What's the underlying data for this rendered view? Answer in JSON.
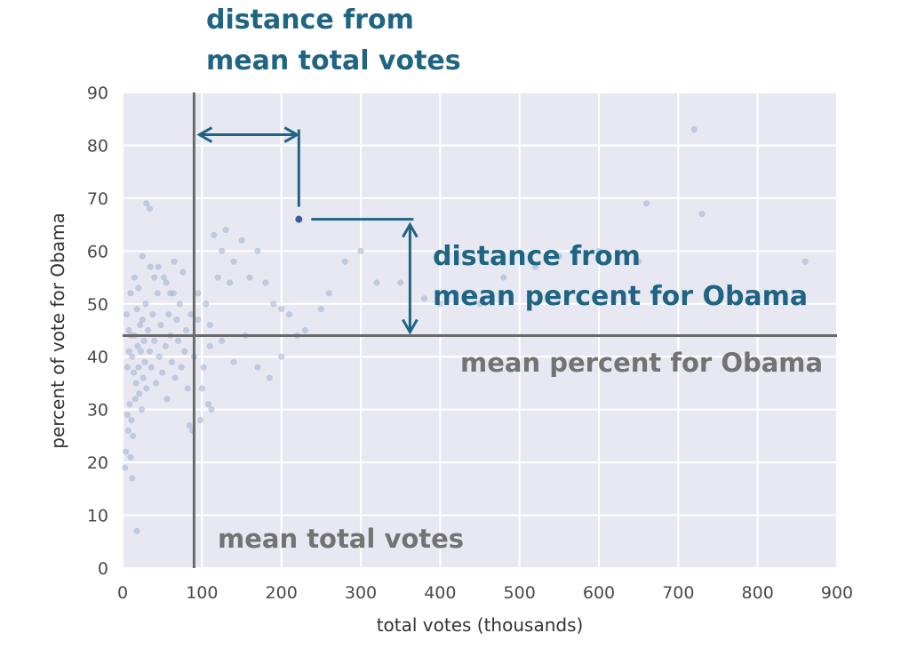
{
  "chart_data": {
    "type": "scatter",
    "xlabel": "total votes (thousands)",
    "ylabel": "percent of vote for Obama",
    "xlim": [
      0,
      900
    ],
    "ylim": [
      0,
      90
    ],
    "xticks": [
      "0",
      "100",
      "200",
      "300",
      "400",
      "500",
      "600",
      "700",
      "800",
      "900"
    ],
    "yticks": [
      "0",
      "10",
      "20",
      "30",
      "40",
      "50",
      "60",
      "70",
      "80",
      "90"
    ],
    "grid": true,
    "mean_total_votes": 90,
    "mean_percent_obama": 44,
    "highlight_point": {
      "x": 222,
      "y": 66
    },
    "points": [
      [
        5,
        48
      ],
      [
        8,
        45
      ],
      [
        10,
        52
      ],
      [
        12,
        40
      ],
      [
        14,
        37
      ],
      [
        15,
        44
      ],
      [
        17,
        35
      ],
      [
        18,
        49
      ],
      [
        19,
        42
      ],
      [
        20,
        38
      ],
      [
        21,
        33
      ],
      [
        22,
        46
      ],
      [
        23,
        41
      ],
      [
        24,
        30
      ],
      [
        25,
        47
      ],
      [
        26,
        36
      ],
      [
        27,
        43
      ],
      [
        28,
        39
      ],
      [
        29,
        50
      ],
      [
        30,
        34
      ],
      [
        6,
        29
      ],
      [
        7,
        26
      ],
      [
        9,
        31
      ],
      [
        11,
        28
      ],
      [
        13,
        25
      ],
      [
        16,
        32
      ],
      [
        4,
        22
      ],
      [
        3,
        19
      ],
      [
        10,
        21
      ],
      [
        12,
        17
      ],
      [
        32,
        45
      ],
      [
        34,
        41
      ],
      [
        36,
        38
      ],
      [
        38,
        48
      ],
      [
        40,
        43
      ],
      [
        42,
        35
      ],
      [
        44,
        52
      ],
      [
        46,
        40
      ],
      [
        48,
        46
      ],
      [
        50,
        37
      ],
      [
        52,
        55
      ],
      [
        54,
        42
      ],
      [
        56,
        32
      ],
      [
        58,
        48
      ],
      [
        60,
        44
      ],
      [
        62,
        39
      ],
      [
        64,
        52
      ],
      [
        66,
        36
      ],
      [
        68,
        47
      ],
      [
        70,
        43
      ],
      [
        72,
        50
      ],
      [
        74,
        38
      ],
      [
        76,
        56
      ],
      [
        78,
        41
      ],
      [
        80,
        45
      ],
      [
        82,
        34
      ],
      [
        84,
        27
      ],
      [
        86,
        48
      ],
      [
        88,
        26
      ],
      [
        90,
        40
      ],
      [
        35,
        57
      ],
      [
        45,
        57
      ],
      [
        55,
        54
      ],
      [
        65,
        58
      ],
      [
        30,
        69
      ],
      [
        34,
        68
      ],
      [
        18,
        7
      ],
      [
        95,
        52
      ],
      [
        98,
        28
      ],
      [
        100,
        34
      ],
      [
        105,
        50
      ],
      [
        110,
        42
      ],
      [
        115,
        63
      ],
      [
        120,
        55
      ],
      [
        125,
        60
      ],
      [
        130,
        64
      ],
      [
        135,
        54
      ],
      [
        140,
        58
      ],
      [
        150,
        62
      ],
      [
        160,
        55
      ],
      [
        170,
        60
      ],
      [
        180,
        54
      ],
      [
        190,
        50
      ],
      [
        200,
        49
      ],
      [
        210,
        48
      ],
      [
        220,
        44
      ],
      [
        230,
        45
      ],
      [
        250,
        49
      ],
      [
        260,
        52
      ],
      [
        280,
        58
      ],
      [
        300,
        60
      ],
      [
        320,
        54
      ],
      [
        350,
        54
      ],
      [
        380,
        51
      ],
      [
        400,
        50
      ],
      [
        420,
        52
      ],
      [
        450,
        50
      ],
      [
        480,
        55
      ],
      [
        520,
        57
      ],
      [
        550,
        59
      ],
      [
        600,
        60
      ],
      [
        650,
        58
      ],
      [
        660,
        69
      ],
      [
        720,
        83
      ],
      [
        730,
        67
      ],
      [
        860,
        58
      ],
      [
        110,
        46
      ],
      [
        125,
        43
      ],
      [
        140,
        39
      ],
      [
        155,
        44
      ],
      [
        170,
        38
      ],
      [
        185,
        36
      ],
      [
        200,
        40
      ],
      [
        95,
        47
      ],
      [
        102,
        38
      ],
      [
        108,
        31
      ],
      [
        112,
        30
      ],
      [
        25,
        59
      ],
      [
        15,
        55
      ],
      [
        20,
        53
      ],
      [
        40,
        55
      ],
      [
        60,
        52
      ],
      [
        10,
        44
      ],
      [
        8,
        41
      ],
      [
        6,
        38
      ]
    ]
  },
  "annotations": {
    "dist_total_line1": "distance from",
    "dist_total_line2": "mean total votes",
    "dist_percent_line1": "distance from",
    "dist_percent_line2": "mean percent for Obama",
    "mean_percent_label": "mean percent for Obama",
    "mean_total_label": "mean total votes"
  },
  "colors": {
    "plot_bg": "#e8e8f2",
    "grid": "#ffffff",
    "points": "#8da6c8",
    "highlight": "#3c5aa6",
    "mean_line": "#6a6a6a",
    "annotation_blue": "#1f6583",
    "annotation_gray": "#737373"
  }
}
